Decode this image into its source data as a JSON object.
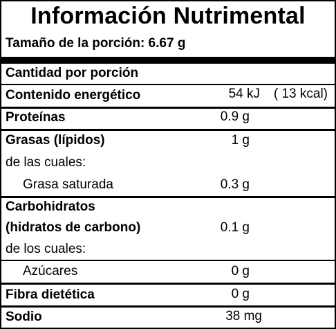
{
  "title": "Información Nutrimental",
  "serving": "Tamaño de la porción: 6.67 g",
  "per_serving": "Cantidad por porción",
  "rows": [
    {
      "label": "Contenido energético",
      "value": "54 kJ",
      "extra": "( 13 kcal)"
    },
    {
      "label": "Proteínas",
      "value": "0.9 g"
    },
    {
      "label": "Grasas (lípidos)",
      "value": "1 g",
      "sub_label": "de las cuales:"
    },
    {
      "label": "Grasa saturada",
      "value": "0.3 g"
    },
    {
      "label": "Carbohidratos",
      "label2": "(hidratos de carbono)",
      "value": "0.1 g",
      "sub_label": "de los cuales:"
    },
    {
      "label": "Azúcares",
      "value": "0 g"
    },
    {
      "label": "Fibra dietética",
      "value": "0 g"
    },
    {
      "label": "Sodio",
      "value": "38 mg"
    }
  ]
}
